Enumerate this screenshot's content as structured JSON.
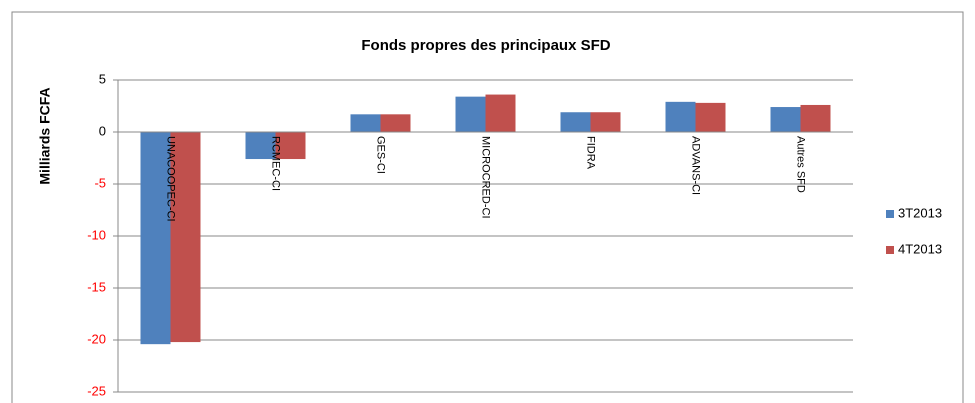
{
  "chart_data": {
    "type": "bar",
    "title": "Fonds propres des  principaux SFD",
    "ylabel": "Milliards FCFA",
    "categories": [
      "UNACOOPEC-CI",
      "RCMEC-CI",
      "GES-CI",
      "MICROCRED-CI",
      "FIDRA",
      "ADVANS-CI",
      "Autres SFD"
    ],
    "series": [
      {
        "name": "3T2013",
        "color": "#4f81bd",
        "values": [
          -20.4,
          -2.6,
          1.7,
          3.4,
          1.9,
          2.9,
          2.4
        ]
      },
      {
        "name": "4T2013",
        "color": "#c0504d",
        "values": [
          -20.2,
          -2.6,
          1.7,
          3.6,
          1.9,
          2.8,
          2.6
        ]
      }
    ],
    "ylim": [
      -25,
      5
    ],
    "yticks": [
      5,
      0,
      -5,
      -10,
      -15,
      -20,
      -25
    ],
    "negative_tick_color": "#ff0000",
    "grid": true,
    "legend": "right"
  }
}
